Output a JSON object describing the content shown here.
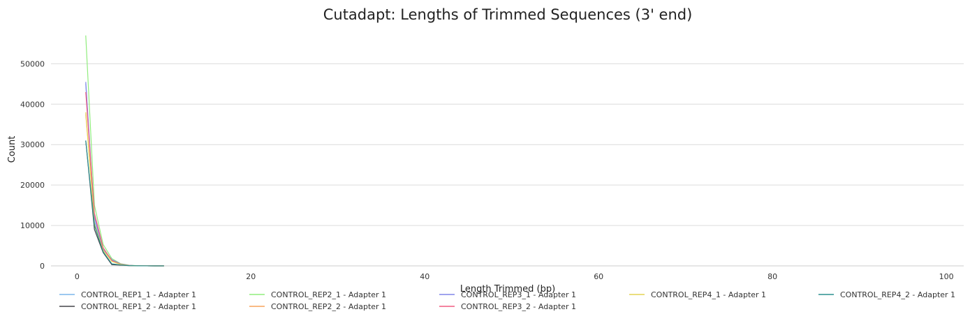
{
  "chart_data": {
    "type": "line",
    "title": "Cutadapt: Lengths of Trimmed Sequences (3' end)",
    "xlabel": "Length Trimmed (bp)",
    "ylabel": "Count",
    "xlim": [
      -3,
      102
    ],
    "ylim": [
      0,
      58000
    ],
    "x_ticks": [
      0,
      20,
      40,
      60,
      80,
      100
    ],
    "y_ticks": [
      0,
      10000,
      20000,
      30000,
      40000,
      50000
    ],
    "grid": "horizontal",
    "legend_position": "bottom",
    "series": [
      {
        "name": "CONTROL_REP1_1 - Adapter 1",
        "color": "#7cb5ec",
        "x": [
          1,
          2,
          3,
          4,
          5,
          6,
          7,
          8,
          9,
          10
        ],
        "y": [
          45000,
          11000,
          3800,
          1400,
          450,
          120,
          30,
          10,
          4,
          2
        ]
      },
      {
        "name": "CONTROL_REP1_2 - Adapter 1",
        "color": "#434348",
        "x": [
          1,
          2,
          3,
          4,
          5,
          6,
          7,
          8,
          9,
          10
        ],
        "y": [
          31000,
          9000,
          3300,
          300,
          200,
          60,
          20,
          8,
          3,
          1
        ]
      },
      {
        "name": "CONTROL_REP2_1 - Adapter 1",
        "color": "#90ed7d",
        "x": [
          1,
          2,
          3,
          4,
          5,
          6,
          7,
          8,
          9,
          10
        ],
        "y": [
          57000,
          15000,
          5300,
          1800,
          550,
          150,
          40,
          12,
          5,
          2
        ]
      },
      {
        "name": "CONTROL_REP2_2 - Adapter 1",
        "color": "#f7a35c",
        "x": [
          1,
          2,
          3,
          4,
          5,
          6,
          7,
          8,
          9,
          10
        ],
        "y": [
          37500,
          12500,
          4500,
          1200,
          400,
          100,
          30,
          10,
          4,
          1
        ]
      },
      {
        "name": "CONTROL_REP3_1 - Adapter 1",
        "color": "#8085e9",
        "x": [
          1,
          2,
          3,
          4,
          5,
          6,
          7,
          8,
          9,
          10
        ],
        "y": [
          45500,
          12000,
          4200,
          1500,
          480,
          130,
          35,
          11,
          4,
          2
        ]
      },
      {
        "name": "CONTROL_REP3_2 - Adapter 1",
        "color": "#f15c80",
        "x": [
          1,
          2,
          3,
          4,
          5,
          6,
          7,
          8,
          9,
          10
        ],
        "y": [
          43000,
          13000,
          4500,
          1300,
          420,
          110,
          30,
          10,
          4,
          1
        ]
      },
      {
        "name": "CONTROL_REP4_1 - Adapter 1",
        "color": "#e4d354",
        "x": [
          1,
          2,
          3,
          4,
          5,
          6,
          7,
          8,
          9,
          10
        ],
        "y": [
          38000,
          10500,
          3900,
          1100,
          380,
          100,
          28,
          9,
          3,
          1
        ]
      },
      {
        "name": "CONTROL_REP4_2 - Adapter 1",
        "color": "#2b908f",
        "x": [
          1,
          2,
          3,
          4,
          5,
          6,
          7,
          8,
          9,
          10
        ],
        "y": [
          31000,
          10000,
          3500,
          500,
          250,
          70,
          22,
          8,
          3,
          1
        ]
      }
    ]
  }
}
